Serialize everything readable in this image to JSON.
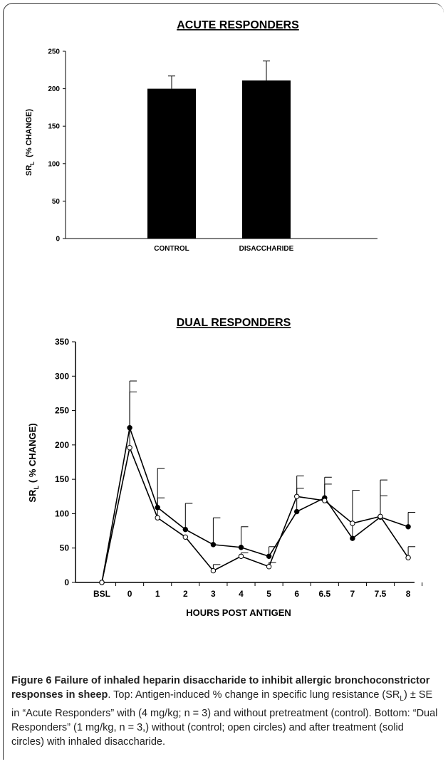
{
  "chart_data": [
    {
      "type": "bar",
      "title": "ACUTE RESPONDERS",
      "ylabel_main": "SR",
      "ylabel_sub": "L",
      "ylabel_rest": "(% CHANGE)",
      "xlabel": "",
      "ylim": [
        0,
        250
      ],
      "yticks": [
        0,
        50,
        100,
        150,
        200,
        250
      ],
      "categories": [
        "CONTROL",
        "DISACCHARIDE"
      ],
      "values": [
        200,
        211
      ],
      "errors": [
        17,
        26
      ],
      "bar_color": "#000000"
    },
    {
      "type": "line",
      "title": "DUAL RESPONDERS",
      "ylabel_main": "SR",
      "ylabel_sub": "L",
      "ylabel_rest": "( % CHANGE)",
      "xlabel": "HOURS POST ANTIGEN",
      "ylim": [
        0,
        350
      ],
      "yticks": [
        0,
        50,
        100,
        150,
        200,
        250,
        300,
        350
      ],
      "categories": [
        "BSL",
        "0",
        "1",
        "2",
        "3",
        "4",
        "5",
        "6",
        "6.5",
        "7",
        "7.5",
        "8"
      ],
      "series": [
        {
          "marker": "solid",
          "values": [
            0,
            225,
            109,
            77,
            55,
            51,
            38,
            103,
            123,
            64,
            95,
            81
          ],
          "errors": [
            0,
            68,
            57,
            38,
            39,
            30,
            14,
            52,
            30,
            70,
            54,
            21
          ]
        },
        {
          "marker": "open",
          "values": [
            0,
            196,
            94,
            66,
            17,
            38,
            23,
            125,
            119,
            86,
            96,
            36
          ],
          "errors": [
            0,
            81,
            29,
            0,
            9,
            5,
            6,
            12,
            24,
            0,
            30,
            16
          ]
        }
      ]
    }
  ],
  "caption": {
    "figure_label": "Figure 6 Failure of inhaled heparin disaccharide to inhibit allergic bronchoconstrictor responses in sheep",
    "text_before_sub": ". Top: Antigen-induced % change in specific lung resistance (SR",
    "sub": "L",
    "text_after_sub": ") ± SE in “Acute Responders” with (4 mg/kg; n = 3) and without pretreatment (control). Bottom: “Dual Responders” (1 mg/kg, n = 3,) without (control; open circles) and after treatment (solid circles) with inhaled disaccharide."
  }
}
